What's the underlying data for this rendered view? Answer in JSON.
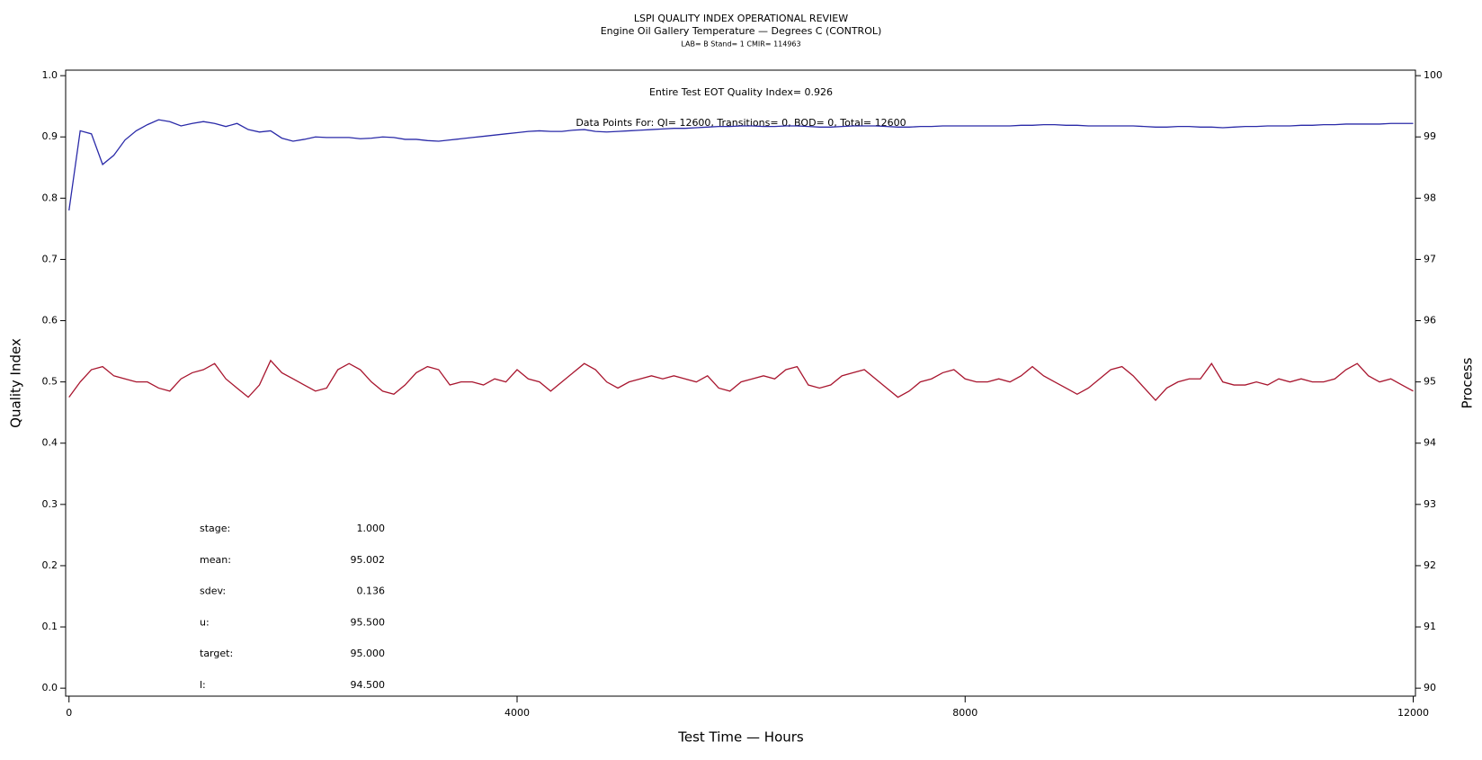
{
  "chart_data": {
    "type": "line",
    "title": "LSPI QUALITY INDEX OPERATIONAL REVIEW",
    "subtitle": "Engine Oil Gallery Temperature — Degrees C (CONTROL)",
    "subtitle2": "LAB= B Stand= 1 CMIR= 114963",
    "annotations": [
      "Entire Test EOT Quality Index=   0.926",
      "Data Points For: QI= 12600, Transitions=     0, BOD=     0, Total= 12600"
    ],
    "stats": [
      {
        "label": "stage:",
        "value": "1.000"
      },
      {
        "label": "mean:",
        "value": "95.002"
      },
      {
        "label": "sdev:",
        "value": "0.136"
      },
      {
        "label": "u:",
        "value": "95.500"
      },
      {
        "label": "target:",
        "value": "95.000"
      },
      {
        "label": "l:",
        "value": "94.500"
      }
    ],
    "x_label": "Test Time — Hours",
    "y_label": "Quality Index",
    "y2_label": "Process",
    "xlim": [
      -30,
      12020
    ],
    "xticks": [
      0,
      4000,
      8000,
      12000
    ],
    "ylim": [
      -0.013,
      1.009
    ],
    "yticks": [
      {
        "value": 0,
        "label": "0.0"
      },
      0.1,
      0.2,
      0.3,
      0.4,
      0.5,
      0.6,
      0.7,
      0.8,
      0.9,
      {
        "value": 1,
        "label": "1.0"
      }
    ],
    "y2lim": [
      89.87,
      100.09
    ],
    "y2ticks": [
      90,
      91,
      92,
      93,
      94,
      95,
      96,
      97,
      98,
      99,
      100
    ],
    "x": [
      0,
      100,
      200,
      300,
      400,
      500,
      600,
      700,
      800,
      900,
      1000,
      1100,
      1200,
      1300,
      1400,
      1500,
      1600,
      1700,
      1800,
      1900,
      2000,
      2100,
      2200,
      2300,
      2400,
      2500,
      2600,
      2700,
      2800,
      2900,
      3000,
      3100,
      3200,
      3300,
      3400,
      3500,
      3600,
      3700,
      3800,
      3900,
      4000,
      4100,
      4200,
      4300,
      4400,
      4500,
      4600,
      4700,
      4800,
      4900,
      5000,
      5100,
      5200,
      5300,
      5400,
      5500,
      5600,
      5700,
      5800,
      5900,
      6000,
      6100,
      6200,
      6300,
      6400,
      6500,
      6600,
      6700,
      6800,
      6900,
      7000,
      7100,
      7200,
      7300,
      7400,
      7500,
      7600,
      7700,
      7800,
      7900,
      8000,
      8100,
      8200,
      8300,
      8400,
      8500,
      8600,
      8700,
      8800,
      8900,
      9000,
      9100,
      9200,
      9300,
      9400,
      9500,
      9600,
      9700,
      9800,
      9900,
      10000,
      10100,
      10200,
      10300,
      10400,
      10500,
      10600,
      10700,
      10800,
      10900,
      11000,
      11100,
      11200,
      11300,
      11400,
      11500,
      11600,
      11700,
      11800,
      11900,
      12000
    ],
    "series": [
      {
        "name": "Quality Index",
        "color": "#2a2aa8",
        "axis": "y",
        "values": [
          0.78,
          0.91,
          0.905,
          0.855,
          0.87,
          0.895,
          0.91,
          0.92,
          0.928,
          0.925,
          0.918,
          0.922,
          0.925,
          0.922,
          0.917,
          0.922,
          0.912,
          0.908,
          0.91,
          0.898,
          0.893,
          0.896,
          0.9,
          0.899,
          0.899,
          0.899,
          0.897,
          0.898,
          0.9,
          0.899,
          0.896,
          0.896,
          0.894,
          0.893,
          0.895,
          0.897,
          0.899,
          0.901,
          0.903,
          0.905,
          0.907,
          0.909,
          0.91,
          0.909,
          0.909,
          0.911,
          0.912,
          0.909,
          0.908,
          0.909,
          0.91,
          0.911,
          0.912,
          0.913,
          0.914,
          0.914,
          0.915,
          0.916,
          0.917,
          0.917,
          0.918,
          0.918,
          0.917,
          0.917,
          0.918,
          0.918,
          0.917,
          0.916,
          0.916,
          0.917,
          0.918,
          0.918,
          0.918,
          0.917,
          0.916,
          0.916,
          0.917,
          0.917,
          0.918,
          0.918,
          0.918,
          0.918,
          0.918,
          0.918,
          0.918,
          0.919,
          0.919,
          0.92,
          0.92,
          0.919,
          0.919,
          0.918,
          0.918,
          0.918,
          0.918,
          0.918,
          0.917,
          0.916,
          0.916,
          0.917,
          0.917,
          0.916,
          0.916,
          0.915,
          0.916,
          0.917,
          0.917,
          0.918,
          0.918,
          0.918,
          0.919,
          0.919,
          0.92,
          0.92,
          0.921,
          0.921,
          0.921,
          0.921,
          0.922,
          0.922,
          0.922
        ]
      },
      {
        "name": "Process",
        "color": "#a8152e",
        "axis": "y2",
        "values": [
          94.75,
          95.0,
          95.2,
          95.25,
          95.1,
          95.05,
          95.0,
          95.0,
          94.9,
          94.85,
          95.05,
          95.15,
          95.2,
          95.3,
          95.05,
          94.9,
          94.75,
          94.95,
          95.35,
          95.15,
          95.05,
          94.95,
          94.85,
          94.9,
          95.2,
          95.3,
          95.2,
          95.0,
          94.85,
          94.8,
          94.95,
          95.15,
          95.25,
          95.2,
          94.95,
          95.0,
          95.0,
          94.95,
          95.05,
          95.0,
          95.2,
          95.05,
          95.0,
          94.85,
          95.0,
          95.15,
          95.3,
          95.2,
          95.0,
          94.9,
          95.0,
          95.05,
          95.1,
          95.05,
          95.1,
          95.05,
          95.0,
          95.1,
          94.9,
          94.85,
          95.0,
          95.05,
          95.1,
          95.05,
          95.2,
          95.25,
          94.95,
          94.9,
          94.95,
          95.1,
          95.15,
          95.2,
          95.05,
          94.9,
          94.75,
          94.85,
          95.0,
          95.05,
          95.15,
          95.2,
          95.05,
          95.0,
          95.0,
          95.05,
          95.0,
          95.1,
          95.25,
          95.1,
          95.0,
          94.9,
          94.8,
          94.9,
          95.05,
          95.2,
          95.25,
          95.1,
          94.9,
          94.7,
          94.9,
          95.0,
          95.05,
          95.05,
          95.3,
          95.0,
          94.95,
          94.95,
          95.0,
          94.95,
          95.05,
          95.0,
          95.05,
          95.0,
          95.0,
          95.05,
          95.2,
          95.3,
          95.1,
          95.0,
          95.05,
          94.95,
          94.85
        ]
      }
    ]
  }
}
